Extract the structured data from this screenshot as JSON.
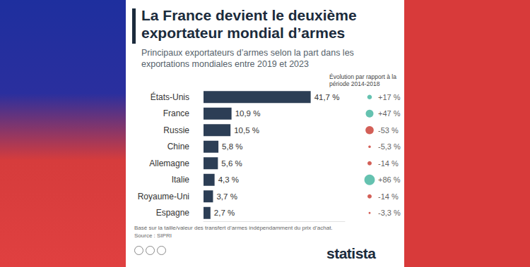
{
  "chart_data": {
    "type": "bar",
    "orientation": "horizontal",
    "title": "La France devient le deuxième exportateur mondial d’armes",
    "subtitle": "Principaux exportateurs d’armes selon la part dans les exportations mondiales entre 2019 et 2023",
    "categories": [
      "États-Unis",
      "France",
      "Russie",
      "Chine",
      "Allemagne",
      "Italie",
      "Royaume-Uni",
      "Espagne"
    ],
    "values": [
      41.7,
      10.9,
      10.5,
      5.8,
      5.6,
      4.3,
      3.7,
      2.7
    ],
    "value_labels": [
      "41,7 %",
      "10,9 %",
      "10,5 %",
      "5,8 %",
      "5,6 %",
      "4,3 %",
      "3,7 %",
      "2,7 %"
    ],
    "data_labels": true,
    "color": "#2c3e55",
    "xlim": [
      0,
      55
    ],
    "tick_labels": "y",
    "grid": false,
    "change_title": "Évolution par rapport à la période 2014-2018",
    "changes": [
      17,
      47,
      -53,
      -5.3,
      -14,
      86,
      -14,
      -3.3
    ],
    "change_labels": [
      "+17 %",
      "+47 %",
      "-53 %",
      "-5,3 %",
      "-14 %",
      "+86 %",
      "-14 %",
      "-3,3 %"
    ],
    "notes": [
      "Basé sur la taille/valeur des transfert d’armes indépendamment du prix d’achat.",
      "Source : SIPRI"
    ],
    "brand": "statista"
  }
}
